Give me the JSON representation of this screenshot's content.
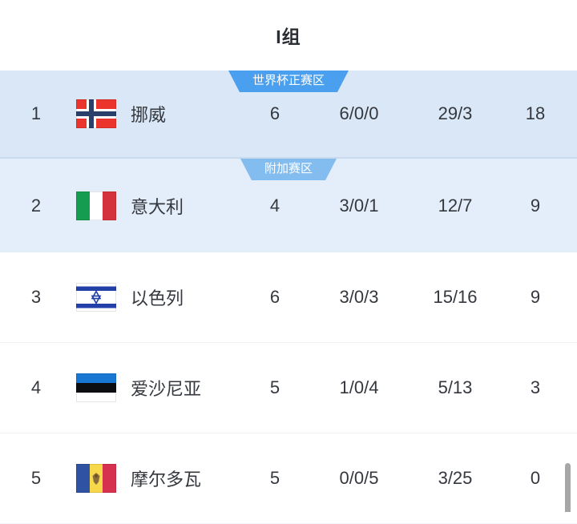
{
  "page": {
    "title": "I组"
  },
  "table": {
    "zones": [
      {
        "badge": "世界杯正赛区",
        "badge_color": "#4AA0EE"
      },
      {
        "badge": "附加赛区",
        "badge_color": "#83BCEE"
      }
    ],
    "rows": [
      {
        "rank": "1",
        "team": "挪威",
        "flag": "norway",
        "played": "6",
        "record": "6/0/0",
        "goals": "29/3",
        "points": "18",
        "zone": 0
      },
      {
        "rank": "2",
        "team": "意大利",
        "flag": "italy",
        "played": "4",
        "record": "3/0/1",
        "goals": "12/7",
        "points": "9",
        "zone": 1
      },
      {
        "rank": "3",
        "team": "以色列",
        "flag": "israel",
        "played": "6",
        "record": "3/0/3",
        "goals": "15/16",
        "points": "9"
      },
      {
        "rank": "4",
        "team": "爱沙尼亚",
        "flag": "estonia",
        "played": "5",
        "record": "1/0/4",
        "goals": "5/13",
        "points": "3"
      },
      {
        "rank": "5",
        "team": "摩尔多瓦",
        "flag": "moldova",
        "played": "5",
        "record": "0/0/5",
        "goals": "3/25",
        "points": "0"
      }
    ]
  },
  "colors": {
    "zone1_background": "#d9e7f7",
    "zone2_background": "#e4eefa",
    "zone_divider": "#c9daee",
    "text": "#34383e",
    "badge_text": "#ffffff",
    "scrollbar": "#a7a7a7"
  }
}
